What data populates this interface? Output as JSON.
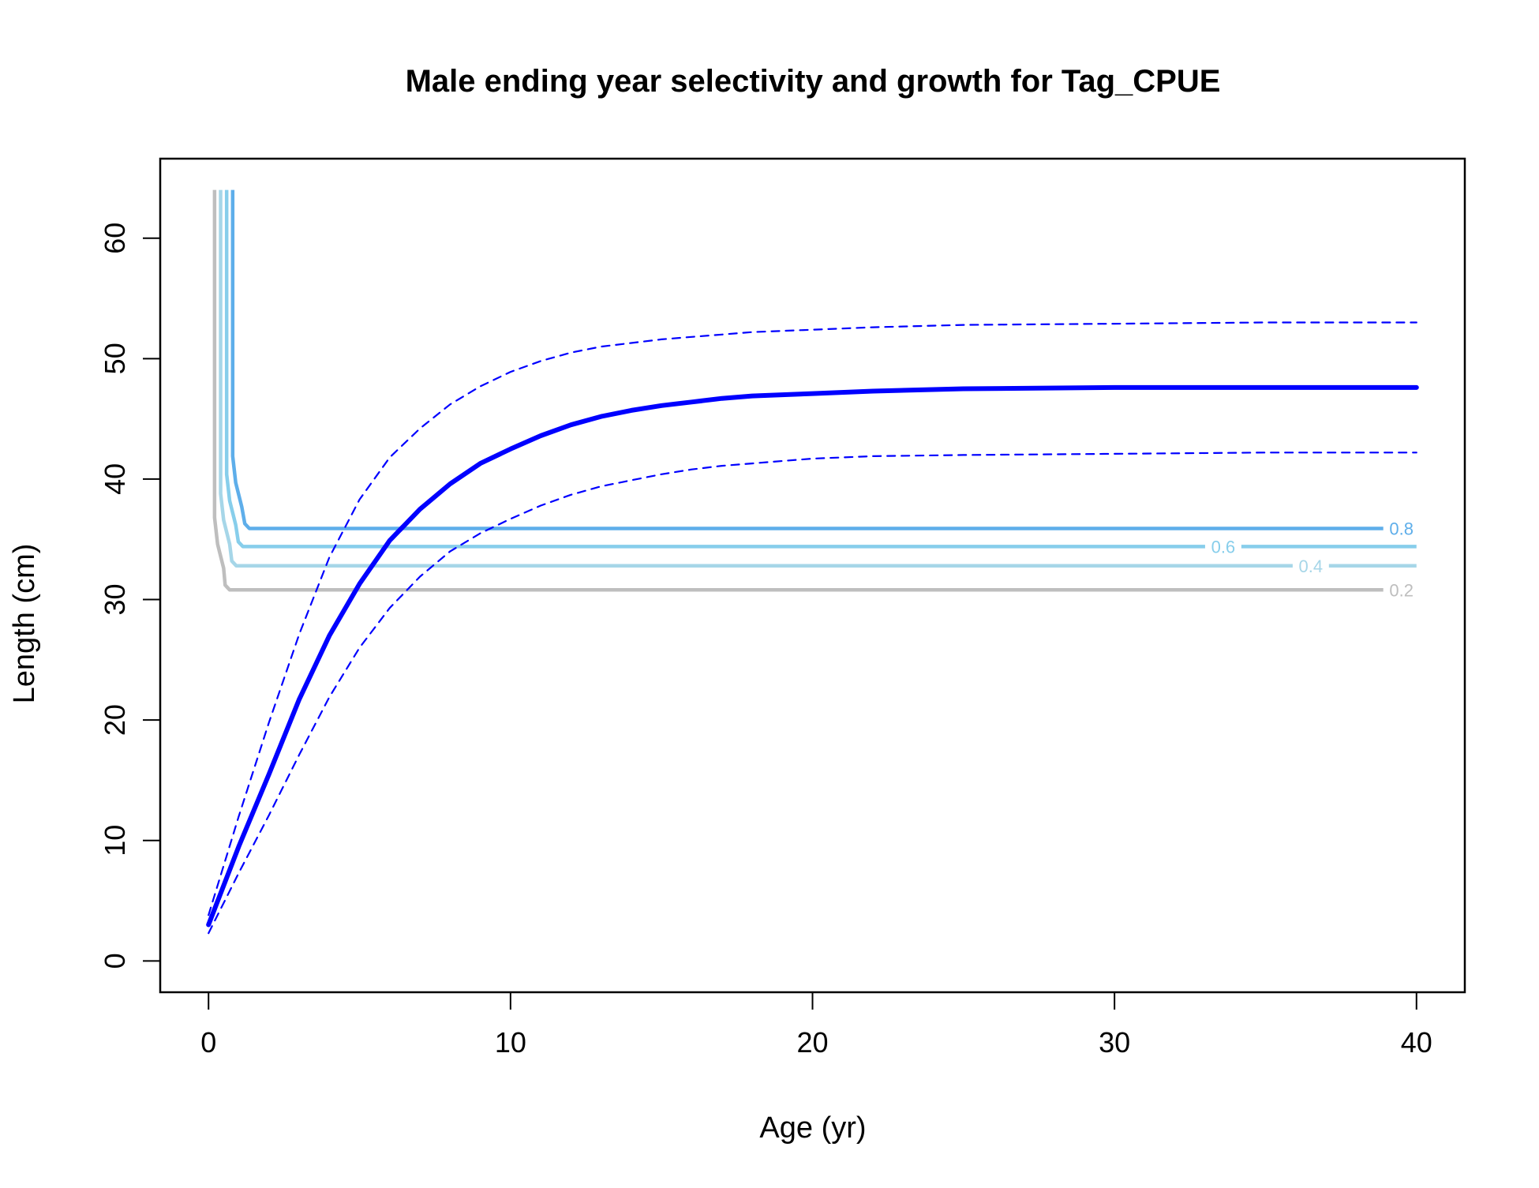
{
  "chart_data": {
    "type": "line",
    "title": "Male ending year selectivity and growth for Tag_CPUE",
    "xlabel": "Age (yr)",
    "ylabel": "Length (cm)",
    "xlim": [
      -1.6,
      41.6
    ],
    "ylim": [
      -2.6,
      66.6
    ],
    "x_ticks": [
      0,
      10,
      20,
      30,
      40
    ],
    "y_ticks": [
      0,
      10,
      20,
      30,
      40,
      50,
      60
    ],
    "grid": false,
    "legend": "none",
    "colors": {
      "growth": "#0000ff",
      "contour_0_2": "#bebebe",
      "contour_0_4": "#a6d6e8",
      "contour_0_6": "#87ceeb",
      "contour_0_8": "#5eaeea"
    },
    "series": [
      {
        "style": "solid-thick",
        "color": "#0000ff",
        "x": [
          0,
          1,
          2,
          3,
          4,
          5,
          6,
          7,
          8,
          9,
          10,
          11,
          12,
          13,
          14,
          15,
          16,
          17,
          18,
          19,
          20,
          22,
          25,
          30,
          35,
          40
        ],
        "y": [
          3.0,
          9.5,
          15.5,
          21.7,
          27.0,
          31.3,
          34.9,
          37.5,
          39.6,
          41.3,
          42.5,
          43.6,
          44.5,
          45.2,
          45.7,
          46.1,
          46.4,
          46.7,
          46.9,
          47.0,
          47.1,
          47.3,
          47.5,
          47.6,
          47.6,
          47.6
        ]
      },
      {
        "style": "dashed",
        "color": "#0000ff",
        "x": [
          0,
          1,
          2,
          3,
          4,
          5,
          6,
          7,
          8,
          9,
          10,
          11,
          12,
          13,
          14,
          15,
          16,
          17,
          18,
          19,
          20,
          22,
          25,
          30,
          35,
          40
        ],
        "y": [
          3.8,
          12.0,
          19.8,
          27.1,
          33.5,
          38.3,
          41.8,
          44.2,
          46.2,
          47.7,
          48.9,
          49.8,
          50.5,
          51.0,
          51.3,
          51.6,
          51.8,
          52.0,
          52.2,
          52.3,
          52.4,
          52.6,
          52.8,
          52.9,
          53.0,
          53.0
        ]
      },
      {
        "style": "dashed",
        "color": "#0000ff",
        "x": [
          0,
          1,
          2,
          3,
          4,
          5,
          6,
          7,
          8,
          9,
          10,
          11,
          12,
          13,
          14,
          15,
          16,
          17,
          18,
          19,
          20,
          22,
          25,
          30,
          35,
          40
        ],
        "y": [
          2.3,
          7.3,
          12.1,
          17.1,
          21.9,
          26.0,
          29.3,
          31.9,
          34.0,
          35.5,
          36.7,
          37.8,
          38.7,
          39.4,
          39.9,
          40.4,
          40.8,
          41.1,
          41.3,
          41.5,
          41.7,
          41.9,
          42.0,
          42.1,
          42.2,
          42.2
        ]
      }
    ],
    "contours": [
      {
        "level": "0.2",
        "color": "#bebebe",
        "x_vert": 0.2,
        "y_flat": 30.8,
        "x_label": 39.5
      },
      {
        "level": "0.4",
        "color": "#a6d6e8",
        "x_vert": 0.4,
        "y_flat": 32.8,
        "x_label": 36.5
      },
      {
        "level": "0.6",
        "color": "#87ceeb",
        "x_vert": 0.6,
        "y_flat": 34.4,
        "x_label": 33.6
      },
      {
        "level": "0.8",
        "color": "#5eaeea",
        "x_vert": 0.8,
        "y_flat": 35.9,
        "x_label": 39.5
      }
    ],
    "contour_top": 64
  }
}
